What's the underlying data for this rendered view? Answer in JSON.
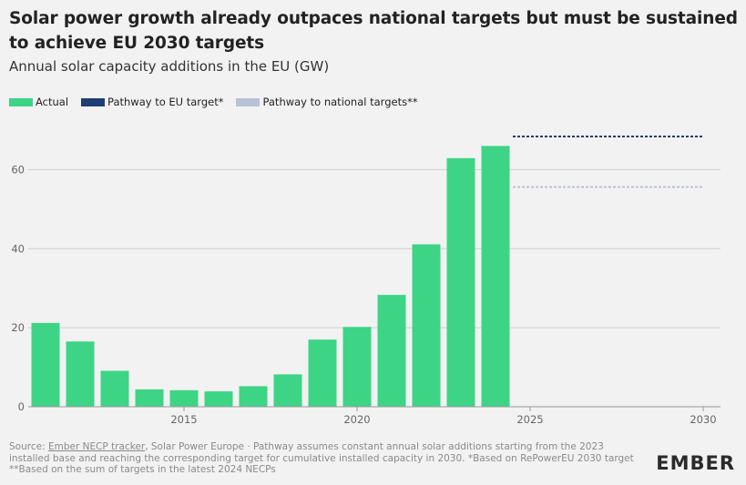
{
  "title": "Solar power growth already outpaces national targets but must be sustained to achieve EU 2030 targets",
  "subtitle": "Annual solar capacity additions in the EU (GW)",
  "legend": [
    {
      "label": "Actual",
      "color": "#3dd486"
    },
    {
      "label": "Pathway to EU target*",
      "color": "#1e3f73"
    },
    {
      "label": "Pathway to national targets**",
      "color": "#b8c2d6"
    }
  ],
  "footer": {
    "source_prefix": "Source: ",
    "source_link": "Ember NECP tracker",
    "source_rest": ", Solar Power Europe · Pathway assumes constant annual solar additions starting from the 2023 installed base and reaching the corresponding target for cumulative installed capacity in 2030. *Based on RePowerEU 2030 target **Based on the sum of targets in the latest 2024 NECPs"
  },
  "logo": "EMBER",
  "chart_data": {
    "type": "bar",
    "title": "Annual solar capacity additions in the EU (GW)",
    "x": [
      2011,
      2012,
      2013,
      2014,
      2015,
      2016,
      2017,
      2018,
      2019,
      2020,
      2021,
      2022,
      2023,
      2024
    ],
    "categories": [
      "2011",
      "2012",
      "2013",
      "2014",
      "2015",
      "2016",
      "2017",
      "2018",
      "2019",
      "2020",
      "2021",
      "2022",
      "2023",
      "2024"
    ],
    "series": [
      {
        "name": "Actual",
        "values": [
          21.2,
          16.5,
          9.1,
          4.4,
          4.2,
          3.9,
          5.2,
          8.2,
          17.0,
          20.2,
          28.3,
          41.1,
          62.9,
          66.0
        ]
      },
      {
        "name": "Pathway to EU target*",
        "x": [
          2024.5,
          2030
        ],
        "values": [
          68.4,
          68.4
        ],
        "style": "dashed"
      },
      {
        "name": "Pathway to national targets**",
        "x": [
          2024.5,
          2030
        ],
        "values": [
          55.6,
          55.6
        ],
        "style": "dotted"
      }
    ],
    "xlim": [
      2010.5,
      2030.5
    ],
    "ylim": [
      0,
      70
    ],
    "xticks": [
      2015,
      2020,
      2025,
      2030
    ],
    "yticks": [
      0,
      20,
      40,
      60
    ],
    "grid": true,
    "legend_position": "top-left"
  }
}
